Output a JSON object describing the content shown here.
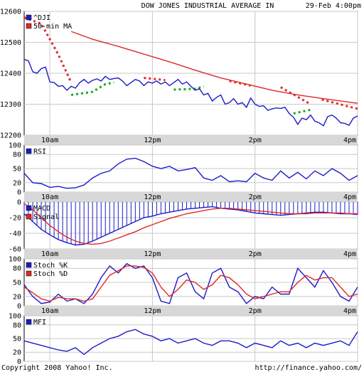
{
  "header": {
    "title": "DOW JONES INDUSTRIAL AVERAGE IN",
    "timestamp": "29-Feb 4:00pm"
  },
  "footer": {
    "copyright": "Copyright 2008 Yahoo! Inc.",
    "url": "http://finance.yahoo.com/"
  },
  "colors": {
    "primary": "#1c1cc8",
    "secondary": "#e02828",
    "dot_red": "#e02828",
    "dot_green": "#18a818",
    "grid": "#c8c8c8",
    "label_band": "#d8d8d8"
  },
  "chart_data": [
    {
      "type": "line",
      "panel": "price",
      "xlabels": [
        "10am",
        "12pm",
        "2pm",
        "4pm"
      ],
      "x_ticks_minutes": [
        30,
        150,
        270,
        390
      ],
      "xlim_minutes": [
        0,
        390
      ],
      "ylim": [
        12200,
        12600
      ],
      "yticks": [
        12200,
        12300,
        12400,
        12500,
        12600
      ],
      "legend": [
        "^DJI",
        "50-min MA"
      ],
      "series": [
        {
          "name": "^DJI",
          "color": "#1c1cc8",
          "x": [
            0,
            5,
            10,
            15,
            20,
            25,
            30,
            35,
            40,
            45,
            50,
            55,
            60,
            65,
            70,
            75,
            80,
            85,
            90,
            95,
            100,
            105,
            110,
            115,
            120,
            125,
            130,
            135,
            140,
            145,
            150,
            155,
            160,
            165,
            170,
            175,
            180,
            185,
            190,
            195,
            200,
            205,
            210,
            215,
            220,
            225,
            230,
            235,
            240,
            245,
            250,
            255,
            260,
            265,
            270,
            275,
            280,
            285,
            290,
            295,
            300,
            305,
            310,
            315,
            320,
            325,
            330,
            335,
            340,
            345,
            350,
            355,
            360,
            365,
            370,
            375,
            380,
            385,
            390
          ],
          "y": [
            12445,
            12440,
            12405,
            12400,
            12415,
            12420,
            12372,
            12370,
            12358,
            12360,
            12345,
            12358,
            12352,
            12370,
            12380,
            12368,
            12377,
            12382,
            12375,
            12390,
            12380,
            12383,
            12385,
            12375,
            12360,
            12370,
            12380,
            12375,
            12360,
            12372,
            12368,
            12375,
            12365,
            12372,
            12360,
            12370,
            12380,
            12365,
            12372,
            12358,
            12345,
            12350,
            12330,
            12335,
            12310,
            12322,
            12330,
            12300,
            12305,
            12318,
            12300,
            12305,
            12290,
            12320,
            12300,
            12293,
            12295,
            12280,
            12285,
            12288,
            12286,
            12290,
            12270,
            12258,
            12235,
            12255,
            12250,
            12265,
            12245,
            12240,
            12230,
            12260,
            12265,
            12255,
            12240,
            12238,
            12232,
            12255,
            12262
          ]
        },
        {
          "name": "50-min MA",
          "color": "#e02828",
          "x": [
            55,
            80,
            110,
            140,
            170,
            200,
            230,
            260,
            290,
            320,
            350,
            390
          ],
          "y": [
            12535,
            12510,
            12487,
            12462,
            12437,
            12410,
            12385,
            12365,
            12345,
            12330,
            12318,
            12303
          ]
        }
      ],
      "dotted_red": [
        [
          [
            0,
            12580
          ],
          [
            20,
            12560
          ],
          [
            40,
            12460
          ],
          [
            55,
            12370
          ]
        ],
        [
          [
            140,
            12385
          ],
          [
            165,
            12378
          ]
        ],
        [
          [
            240,
            12375
          ],
          [
            265,
            12360
          ]
        ],
        [
          [
            300,
            12355
          ],
          [
            335,
            12300
          ]
        ],
        [
          [
            348,
            12315
          ],
          [
            390,
            12285
          ]
        ]
      ],
      "dotted_green": [
        [
          [
            55,
            12330
          ],
          [
            80,
            12340
          ],
          [
            95,
            12365
          ],
          [
            105,
            12370
          ]
        ],
        [
          [
            175,
            12347
          ],
          [
            200,
            12350
          ],
          [
            210,
            12357
          ]
        ],
        [
          [
            315,
            12270
          ],
          [
            335,
            12282
          ]
        ]
      ]
    },
    {
      "type": "line",
      "panel": "rsi",
      "xlabels": [
        "10am",
        "12pm",
        "2pm",
        "4pm"
      ],
      "ylim": [
        0,
        100
      ],
      "yticks": [
        0,
        20,
        50,
        80,
        100
      ],
      "legend": [
        "RSI"
      ],
      "series": [
        {
          "name": "RSI",
          "color": "#1c1cc8",
          "x": [
            0,
            10,
            20,
            30,
            40,
            50,
            60,
            70,
            80,
            90,
            100,
            110,
            120,
            130,
            140,
            150,
            160,
            170,
            180,
            190,
            200,
            210,
            220,
            230,
            240,
            250,
            260,
            270,
            280,
            290,
            300,
            310,
            320,
            330,
            340,
            350,
            360,
            370,
            380,
            390
          ],
          "y": [
            40,
            20,
            18,
            10,
            12,
            8,
            9,
            15,
            30,
            40,
            45,
            60,
            70,
            72,
            65,
            55,
            50,
            55,
            45,
            48,
            52,
            30,
            25,
            35,
            22,
            24,
            22,
            40,
            30,
            25,
            45,
            30,
            42,
            28,
            45,
            35,
            50,
            40,
            25,
            35
          ]
        }
      ]
    },
    {
      "type": "line",
      "panel": "macd",
      "xlabels": [
        "10am",
        "12pm",
        "2pm",
        "4pm"
      ],
      "ylim": [
        -60,
        0
      ],
      "yticks": [
        -60,
        -40,
        -20,
        0
      ],
      "legend": [
        "MACD",
        "Signal"
      ],
      "series": [
        {
          "name": "MACD",
          "color": "#1c1cc8",
          "x": [
            0,
            10,
            20,
            30,
            40,
            50,
            60,
            70,
            80,
            90,
            100,
            110,
            120,
            130,
            140,
            150,
            160,
            170,
            180,
            190,
            200,
            210,
            220,
            230,
            240,
            250,
            260,
            270,
            280,
            290,
            300,
            310,
            320,
            330,
            340,
            350,
            360,
            370,
            380,
            390
          ],
          "y": [
            -15,
            -25,
            -35,
            -42,
            -48,
            -52,
            -55,
            -54,
            -50,
            -45,
            -40,
            -35,
            -30,
            -25,
            -20,
            -18,
            -15,
            -13,
            -11,
            -9,
            -8,
            -7,
            -6,
            -8,
            -9,
            -10,
            -12,
            -14,
            -15,
            -16,
            -17,
            -16,
            -15,
            -14,
            -13,
            -13,
            -14,
            -15,
            -15,
            -16
          ]
        },
        {
          "name": "Signal",
          "color": "#e02828",
          "x": [
            0,
            10,
            20,
            30,
            40,
            50,
            60,
            70,
            80,
            90,
            100,
            110,
            120,
            130,
            140,
            150,
            160,
            170,
            180,
            190,
            200,
            210,
            220,
            230,
            240,
            250,
            260,
            270,
            280,
            290,
            300,
            310,
            320,
            330,
            340,
            350,
            360,
            370,
            380,
            390
          ],
          "y": [
            -2,
            -10,
            -20,
            -30,
            -38,
            -45,
            -50,
            -53,
            -54,
            -53,
            -50,
            -46,
            -42,
            -38,
            -33,
            -29,
            -25,
            -21,
            -18,
            -15,
            -13,
            -11,
            -9,
            -8,
            -8,
            -9,
            -10,
            -11,
            -12,
            -13,
            -14,
            -15,
            -15,
            -15,
            -14,
            -14,
            -14,
            -14,
            -15,
            -15
          ]
        }
      ]
    },
    {
      "type": "line",
      "panel": "stoch",
      "xlabels": [
        "10am",
        "12pm",
        "2pm",
        "4pm"
      ],
      "ylim": [
        0,
        100
      ],
      "yticks": [
        0,
        20,
        50,
        80,
        100
      ],
      "legend": [
        "Stoch %K",
        "Stoch %D"
      ],
      "series": [
        {
          "name": "Stoch %K",
          "color": "#1c1cc8",
          "x": [
            0,
            10,
            20,
            30,
            40,
            50,
            60,
            70,
            80,
            90,
            100,
            110,
            120,
            130,
            140,
            150,
            160,
            170,
            180,
            190,
            200,
            210,
            220,
            230,
            240,
            250,
            260,
            270,
            280,
            290,
            300,
            310,
            320,
            330,
            340,
            350,
            360,
            370,
            380,
            390
          ],
          "y": [
            45,
            20,
            5,
            8,
            25,
            10,
            15,
            5,
            25,
            60,
            85,
            70,
            90,
            80,
            85,
            60,
            10,
            5,
            60,
            70,
            30,
            15,
            70,
            80,
            40,
            30,
            5,
            20,
            15,
            40,
            25,
            25,
            80,
            60,
            40,
            75,
            50,
            20,
            10,
            40
          ]
        },
        {
          "name": "Stoch %D",
          "color": "#e02828",
          "x": [
            0,
            10,
            20,
            30,
            40,
            50,
            60,
            70,
            80,
            90,
            100,
            110,
            120,
            130,
            140,
            150,
            160,
            170,
            180,
            190,
            200,
            210,
            220,
            230,
            240,
            250,
            260,
            270,
            280,
            290,
            300,
            310,
            320,
            330,
            340,
            350,
            360,
            370,
            380,
            390
          ],
          "y": [
            40,
            28,
            15,
            10,
            18,
            15,
            15,
            10,
            15,
            40,
            65,
            75,
            85,
            85,
            82,
            70,
            40,
            20,
            35,
            55,
            50,
            35,
            45,
            65,
            60,
            45,
            25,
            15,
            20,
            25,
            30,
            30,
            50,
            65,
            55,
            60,
            60,
            40,
            20,
            25
          ]
        }
      ]
    },
    {
      "type": "line",
      "panel": "mfi",
      "xlabels": [
        "10am",
        "12pm",
        "2pm",
        "4pm"
      ],
      "ylim": [
        0,
        100
      ],
      "yticks": [
        0,
        20,
        50,
        80,
        100
      ],
      "legend": [
        "MFI"
      ],
      "series": [
        {
          "name": "MFI",
          "color": "#1c1cc8",
          "x": [
            0,
            10,
            20,
            30,
            40,
            50,
            60,
            70,
            80,
            90,
            100,
            110,
            120,
            130,
            140,
            150,
            160,
            170,
            180,
            190,
            200,
            210,
            220,
            230,
            240,
            250,
            260,
            270,
            280,
            290,
            300,
            310,
            320,
            330,
            340,
            350,
            360,
            370,
            380,
            390
          ],
          "y": [
            45,
            40,
            35,
            30,
            25,
            22,
            30,
            15,
            30,
            40,
            50,
            55,
            65,
            70,
            60,
            55,
            45,
            50,
            40,
            45,
            50,
            40,
            35,
            45,
            45,
            40,
            30,
            40,
            35,
            30,
            45,
            35,
            40,
            30,
            40,
            35,
            40,
            45,
            35,
            65
          ]
        }
      ]
    }
  ]
}
